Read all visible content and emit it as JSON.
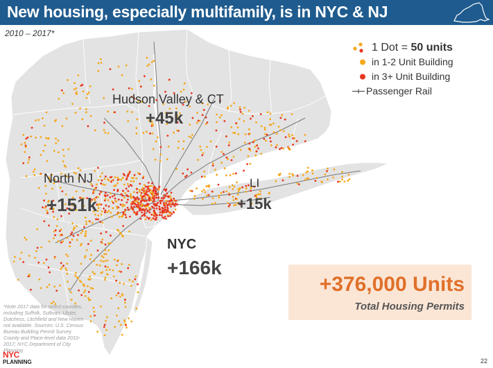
{
  "header": {
    "title": "New housing, especially multifamily, is in NYC & NJ"
  },
  "subtitle": "2010 – 2017*",
  "regions": {
    "hudson": {
      "name": "Hudson Valley & CT",
      "value": "+45k"
    },
    "north_nj": {
      "name": "North NJ",
      "value": "+151k"
    },
    "li": {
      "name": "LI",
      "value": "+15k"
    },
    "nyc": {
      "name": "NYC",
      "value": "+166k"
    }
  },
  "legend": {
    "dot_prefix": "1 Dot = ",
    "dot_units": "50 units",
    "small_building": "in 1-2 Unit Building",
    "large_building": "in 3+ Unit Building",
    "rail": "Passenger Rail"
  },
  "total": {
    "value": "+376,000 Units",
    "label": "Total Housing Permits"
  },
  "note": "*Note 2017 data for select counties, including Suffolk, Sullivan, Ulster, Dutchess, Litchfield and New Haven not available. Sources: U.S. Census Bureau Building Permit Survey County and Place-level data 2010-2017; NYC Department of City Planning",
  "logo": {
    "top": "NYC",
    "bottom": "PLANNING"
  },
  "page_number": "22",
  "colors": {
    "header": "#1f5b8e",
    "land": "#e3e3e3",
    "small_building_dot": "#f4a81d",
    "large_building_dot": "#e8361e",
    "total_text": "#e0702a",
    "total_box": "#fbe6d6",
    "rail": "#666666"
  }
}
